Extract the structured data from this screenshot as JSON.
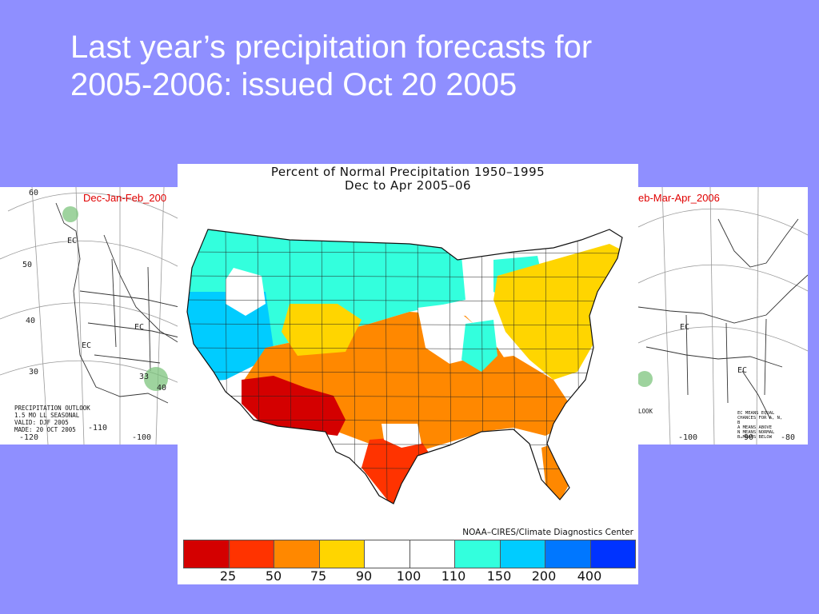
{
  "slide": {
    "title_line1": "Last year’s precipitation forecasts for",
    "title_line2": "2005-2006: issued Oct 20 2005"
  },
  "left_outlook": {
    "panel_title": "Dec-Jan-Feb_200",
    "lat_labels": [
      "60",
      "50",
      "40",
      "30"
    ],
    "lon_labels": [
      "-120",
      "-110",
      "-100"
    ],
    "ec_labels": [
      "EC",
      "EC",
      "EC"
    ],
    "prob_labels": [
      "33",
      "40"
    ],
    "note": "PRECIPITATION OUTLOOK\n1.5 MO LL SEASONAL\nVALID: DJF 2005\nMADE: 20 OCT 2005"
  },
  "right_outlook": {
    "panel_title": "eb-Mar-Apr_2006",
    "lon_labels": [
      "-100",
      "-90",
      "-80"
    ],
    "ec_labels": [
      "EC",
      "EC"
    ],
    "note": "LOOK",
    "key": "EC MEANS EQUAL\nCHANCES FOR A, N, B\nA MEANS ABOVE\nN MEANS NORMAL\nB MEANS BELOW"
  },
  "main_map": {
    "title_line1": "Percent of Normal Precipitation 1950–1995",
    "title_line2": "Dec to Apr 2005–06",
    "credit": "NOAA–CIRES/Climate Diagnostics Center",
    "legend_colors": [
      "#d40000",
      "#ff3300",
      "#ff8800",
      "#ffd500",
      "#ffffff",
      "#ffffff",
      "#33ffdd",
      "#00ccff",
      "#0077ff",
      "#0033ff"
    ],
    "legend_ticks": [
      "25",
      "50",
      "75",
      "90",
      "100",
      "110",
      "150",
      "200",
      "400"
    ],
    "region_colors": {
      "pacific_northwest": "#00ccff",
      "northern_plains": "#33ffdd",
      "central_plains": "#ff8800",
      "southwest": "#d40000",
      "texas_gulf": "#ff3300",
      "southeast": "#ff8800",
      "east": "#ffd500",
      "normal": "#ffffff"
    }
  }
}
